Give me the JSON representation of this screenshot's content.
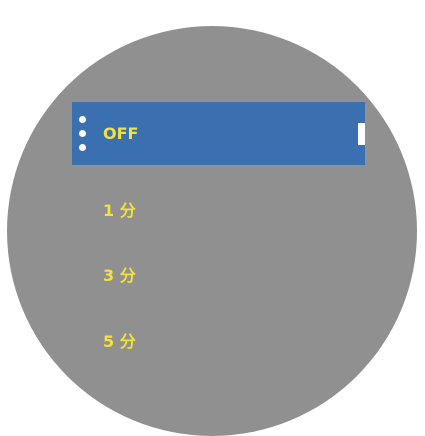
{
  "menu": {
    "items": [
      "OFF",
      "1 分",
      "3 分",
      "5 分"
    ],
    "selected": 0
  }
}
